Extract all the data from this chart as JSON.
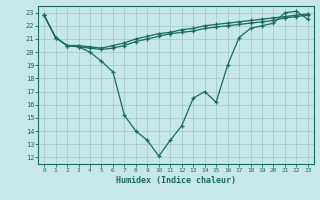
{
  "xlabel": "Humidex (Indice chaleur)",
  "bg_color": "#c6e8e6",
  "grid_color": "#a8ccca",
  "line_color": "#1a6b60",
  "xlim": [
    -0.5,
    23.5
  ],
  "ylim": [
    11.5,
    23.5
  ],
  "xticks": [
    0,
    1,
    2,
    3,
    4,
    5,
    6,
    7,
    8,
    9,
    10,
    11,
    12,
    13,
    14,
    15,
    16,
    17,
    18,
    19,
    20,
    21,
    22,
    23
  ],
  "yticks": [
    12,
    13,
    14,
    15,
    16,
    17,
    18,
    19,
    20,
    21,
    22,
    23
  ],
  "line_u_x": [
    0,
    1,
    2,
    3,
    4,
    5,
    6,
    7,
    8,
    9,
    10,
    11,
    12,
    13,
    14,
    15,
    16,
    17,
    18,
    19,
    20,
    21,
    22,
    23
  ],
  "line_u_y": [
    22.8,
    21.1,
    20.5,
    20.4,
    20.0,
    19.3,
    18.5,
    15.2,
    14.0,
    13.3,
    12.1,
    13.3,
    14.4,
    16.5,
    17.0,
    16.2,
    19.0,
    21.1,
    21.8,
    22.0,
    22.2,
    23.0,
    23.1,
    22.5
  ],
  "line_top1_x": [
    0,
    1,
    2,
    3,
    4,
    5,
    6,
    7,
    8,
    9,
    10,
    11,
    12,
    13,
    14,
    15,
    16,
    17,
    18,
    19,
    20,
    21,
    22,
    23
  ],
  "line_top1_y": [
    22.8,
    21.1,
    20.5,
    20.4,
    20.3,
    20.2,
    20.3,
    20.5,
    20.8,
    21.0,
    21.2,
    21.4,
    21.5,
    21.6,
    21.8,
    21.9,
    22.0,
    22.1,
    22.2,
    22.3,
    22.4,
    22.6,
    22.7,
    22.8
  ],
  "line_top2_x": [
    0,
    1,
    2,
    3,
    4,
    5,
    6,
    7,
    8,
    9,
    10,
    11,
    12,
    13,
    14,
    15,
    16,
    17,
    18,
    19,
    20,
    21,
    22,
    23
  ],
  "line_top2_y": [
    22.8,
    21.1,
    20.5,
    20.5,
    20.4,
    20.3,
    20.5,
    20.7,
    21.0,
    21.2,
    21.4,
    21.5,
    21.7,
    21.8,
    22.0,
    22.1,
    22.2,
    22.3,
    22.4,
    22.5,
    22.6,
    22.7,
    22.8,
    22.9
  ]
}
